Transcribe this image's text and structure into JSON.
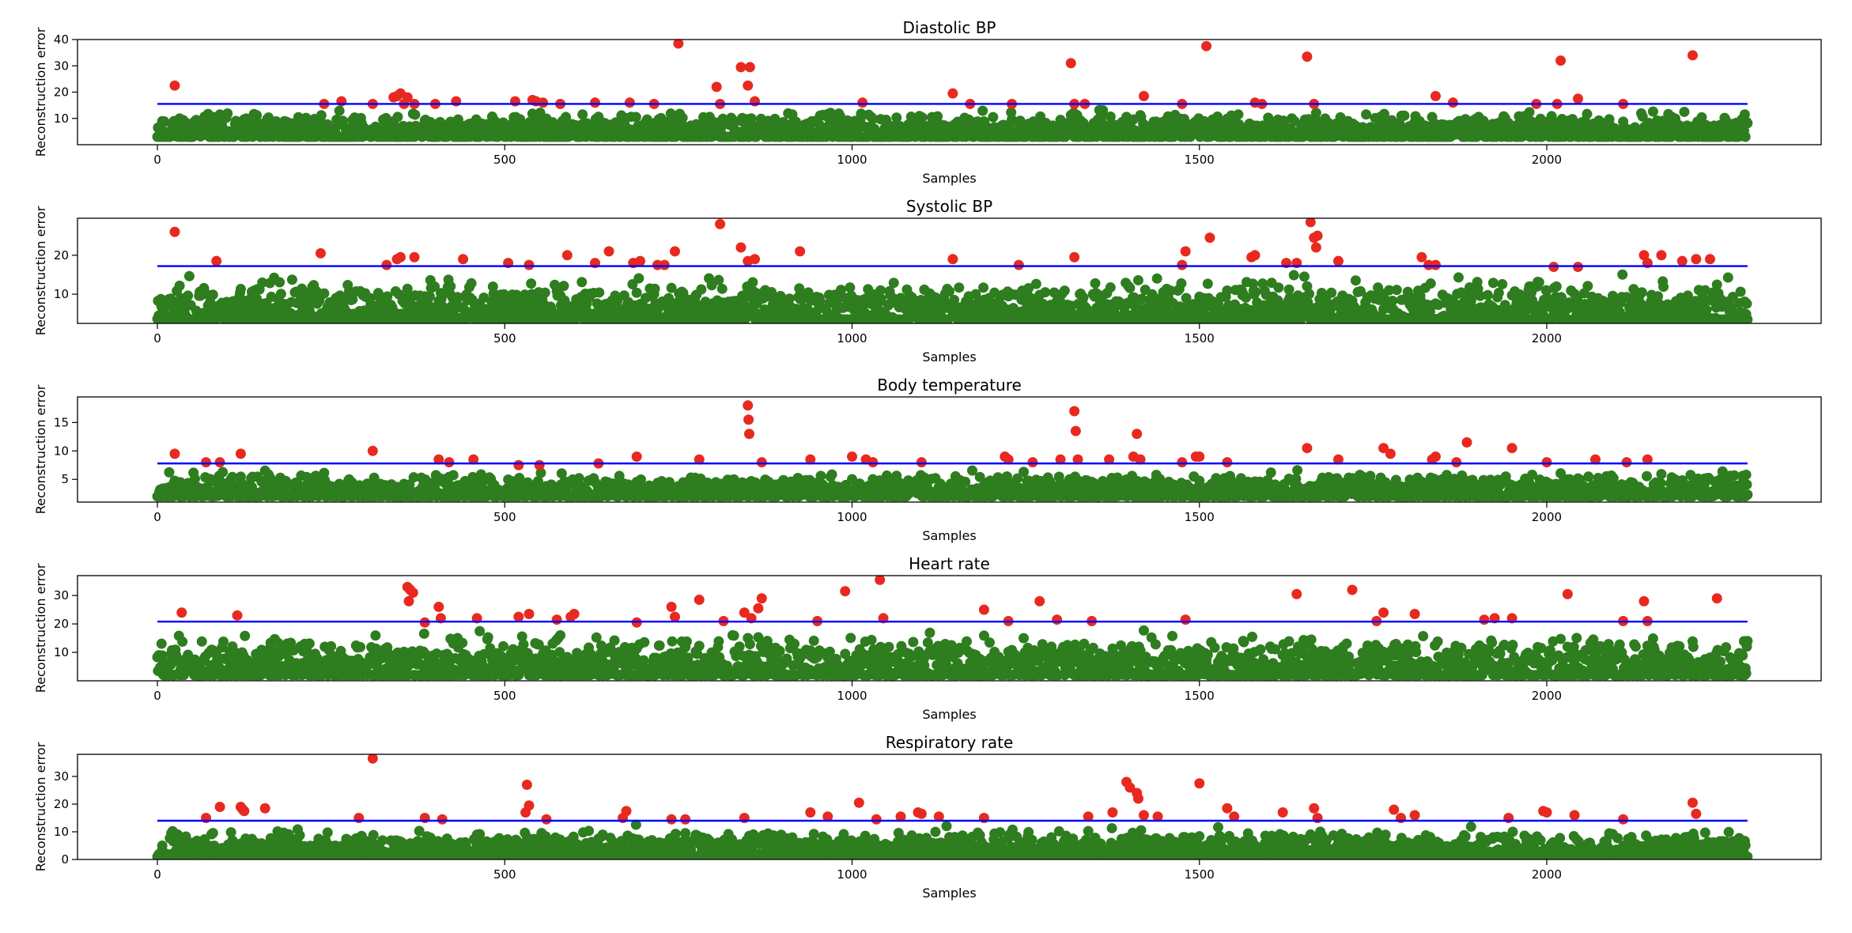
{
  "figure": {
    "background": "#ffffff",
    "normal_color": "#2e7d1f",
    "anomaly_color": "#e8291f",
    "threshold_color": "#0000ff"
  },
  "chart_data": [
    {
      "type": "scatter",
      "title": "Diastolic BP",
      "xlabel": "Samples",
      "ylabel": "Reconstruction error",
      "xlim": [
        -115,
        2395
      ],
      "ylim": [
        0,
        40
      ],
      "xticks": [
        0,
        500,
        1000,
        1500,
        2000
      ],
      "yticks": [
        10,
        20,
        30,
        40
      ],
      "threshold": 15.5,
      "normal_count": 2290,
      "normal_range": [
        3,
        15
      ],
      "normal_seed": 11,
      "grid": false,
      "series": [
        {
          "role": "anomaly",
          "x": [
            25,
            240,
            265,
            310,
            340,
            345,
            350,
            355,
            360,
            370,
            400,
            430,
            515,
            540,
            545,
            555,
            580,
            630,
            680,
            715,
            750,
            805,
            810,
            840,
            850,
            853,
            860,
            1015,
            1145,
            1170,
            1230,
            1315,
            1320,
            1335,
            1420,
            1475,
            1510,
            1580,
            1590,
            1655,
            1665,
            1840,
            1865,
            1985,
            2015,
            2020,
            2045,
            2110,
            2210
          ],
          "y": [
            22.5,
            15.5,
            16.5,
            15.5,
            18.0,
            18.5,
            19.5,
            15.5,
            18.0,
            15.5,
            15.5,
            16.5,
            16.5,
            17.0,
            16.5,
            16.0,
            15.5,
            16.0,
            16.0,
            15.5,
            38.5,
            22.0,
            15.5,
            29.5,
            22.5,
            29.5,
            16.5,
            16.0,
            19.5,
            15.5,
            15.5,
            31.0,
            15.5,
            15.5,
            18.5,
            15.5,
            37.5,
            16.0,
            15.5,
            33.5,
            15.5,
            18.5,
            16.0,
            15.5,
            15.5,
            32.0,
            17.5,
            15.5,
            34.0
          ]
        }
      ]
    },
    {
      "type": "scatter",
      "title": "Systolic BP",
      "xlabel": "Samples",
      "ylabel": "Reconstruction error",
      "xlim": [
        -115,
        2395
      ],
      "ylim": [
        2.5,
        29.5
      ],
      "xticks": [
        0,
        500,
        1000,
        1500,
        2000
      ],
      "yticks": [
        10,
        20
      ],
      "threshold": 17.2,
      "normal_count": 2290,
      "normal_range": [
        3.5,
        17
      ],
      "normal_seed": 23,
      "grid": false,
      "series": [
        {
          "role": "anomaly",
          "x": [
            25,
            85,
            235,
            330,
            345,
            350,
            370,
            440,
            505,
            535,
            590,
            630,
            650,
            685,
            695,
            720,
            730,
            745,
            810,
            840,
            850,
            860,
            925,
            1145,
            1240,
            1320,
            1475,
            1480,
            1515,
            1575,
            1580,
            1625,
            1640,
            1660,
            1665,
            1668,
            1670,
            1700,
            1820,
            1830,
            1840,
            2010,
            2045,
            2140,
            2145,
            2165,
            2195,
            2215,
            2235
          ],
          "y": [
            26.0,
            18.5,
            20.5,
            17.5,
            19.0,
            19.5,
            19.5,
            19.0,
            18.0,
            17.5,
            20.0,
            18.0,
            21.0,
            18.0,
            18.5,
            17.5,
            17.5,
            21.0,
            28.0,
            22.0,
            18.5,
            19.0,
            21.0,
            19.0,
            17.5,
            19.5,
            17.5,
            21.0,
            24.5,
            19.5,
            20.0,
            18.0,
            18.0,
            28.5,
            24.5,
            22.0,
            25.0,
            18.5,
            19.5,
            17.5,
            17.5,
            17.0,
            17.0,
            20.0,
            18.0,
            20.0,
            18.5,
            19.0,
            19.0
          ]
        }
      ]
    },
    {
      "type": "scatter",
      "title": "Body temperature",
      "xlabel": "Samples",
      "ylabel": "Reconstruction error",
      "xlim": [
        -115,
        2395
      ],
      "ylim": [
        1,
        19.5
      ],
      "xticks": [
        0,
        500,
        1000,
        1500,
        2000
      ],
      "yticks": [
        5,
        10,
        15
      ],
      "threshold": 7.8,
      "normal_count": 2290,
      "normal_range": [
        2,
        7.5
      ],
      "normal_seed": 37,
      "grid": false,
      "series": [
        {
          "role": "anomaly",
          "x": [
            25,
            70,
            90,
            120,
            310,
            405,
            420,
            455,
            520,
            550,
            635,
            690,
            780,
            850,
            851,
            852,
            870,
            940,
            1000,
            1020,
            1030,
            1100,
            1220,
            1225,
            1260,
            1300,
            1320,
            1322,
            1325,
            1370,
            1405,
            1410,
            1415,
            1475,
            1495,
            1500,
            1540,
            1655,
            1700,
            1765,
            1775,
            1835,
            1840,
            1870,
            1885,
            1950,
            2000,
            2070,
            2115,
            2145
          ],
          "y": [
            9.5,
            8.0,
            8.0,
            9.5,
            10.0,
            8.5,
            8.0,
            8.5,
            7.5,
            7.5,
            7.8,
            9.0,
            8.5,
            18.0,
            15.5,
            13.0,
            8.0,
            8.5,
            9.0,
            8.5,
            8.0,
            8.0,
            9.0,
            8.5,
            8.0,
            8.5,
            17.0,
            13.5,
            8.5,
            8.5,
            9.0,
            13.0,
            8.5,
            8.0,
            9.0,
            9.0,
            8.0,
            10.5,
            8.5,
            10.5,
            9.5,
            8.5,
            9.0,
            8.0,
            11.5,
            10.5,
            8.0,
            8.5,
            8.0,
            8.5
          ]
        }
      ]
    },
    {
      "type": "scatter",
      "title": "Heart rate",
      "xlabel": "Samples",
      "ylabel": "Reconstruction error",
      "xlim": [
        -115,
        2395
      ],
      "ylim": [
        0,
        37
      ],
      "xticks": [
        0,
        500,
        1000,
        1500,
        2000
      ],
      "yticks": [
        10,
        20,
        30
      ],
      "threshold": 20.8,
      "normal_count": 2290,
      "normal_range": [
        2,
        20
      ],
      "normal_seed": 51,
      "grid": false,
      "series": [
        {
          "role": "anomaly",
          "x": [
            35,
            115,
            360,
            362,
            364,
            368,
            385,
            405,
            408,
            460,
            520,
            535,
            575,
            595,
            600,
            690,
            740,
            745,
            780,
            815,
            845,
            855,
            865,
            870,
            950,
            990,
            1040,
            1045,
            1190,
            1225,
            1270,
            1295,
            1345,
            1480,
            1640,
            1720,
            1755,
            1765,
            1810,
            1910,
            1925,
            1950,
            2030,
            2110,
            2140,
            2145,
            2245
          ],
          "y": [
            24.0,
            23.0,
            33.0,
            28.0,
            32.0,
            31.0,
            20.5,
            26.0,
            22.0,
            22.0,
            22.5,
            23.5,
            21.5,
            22.5,
            23.5,
            20.5,
            26.0,
            22.5,
            28.5,
            21.0,
            24.0,
            22.0,
            25.5,
            29.0,
            21.0,
            31.5,
            35.5,
            22.0,
            25.0,
            21.0,
            28.0,
            21.5,
            21.0,
            21.5,
            30.5,
            32.0,
            21.0,
            24.0,
            23.5,
            21.5,
            22.0,
            22.0,
            30.5,
            21.0,
            28.0,
            21.0,
            29.0
          ]
        }
      ]
    },
    {
      "type": "scatter",
      "title": "Respiratory rate",
      "xlabel": "Samples",
      "ylabel": "Reconstruction error",
      "xlim": [
        -115,
        2395
      ],
      "ylim": [
        0,
        38
      ],
      "xticks": [
        0,
        500,
        1000,
        1500,
        2000
      ],
      "yticks": [
        0,
        10,
        20,
        30
      ],
      "threshold": 14.0,
      "normal_count": 2290,
      "normal_range": [
        1,
        14
      ],
      "normal_seed": 67,
      "grid": false,
      "series": [
        {
          "role": "anomaly",
          "x": [
            70,
            90,
            120,
            123,
            125,
            155,
            290,
            310,
            385,
            410,
            530,
            532,
            535,
            560,
            670,
            675,
            740,
            760,
            845,
            940,
            965,
            1010,
            1035,
            1070,
            1095,
            1100,
            1125,
            1190,
            1340,
            1375,
            1395,
            1400,
            1410,
            1412,
            1420,
            1440,
            1500,
            1540,
            1550,
            1620,
            1665,
            1670,
            1780,
            1790,
            1810,
            1945,
            1995,
            2000,
            2040,
            2110,
            2210,
            2215
          ],
          "y": [
            15.0,
            19.0,
            19.0,
            18.0,
            17.5,
            18.5,
            15.0,
            36.5,
            15.0,
            14.5,
            17.0,
            27.0,
            19.5,
            14.5,
            15.0,
            17.5,
            14.5,
            14.5,
            15.0,
            17.0,
            15.5,
            20.5,
            14.5,
            15.5,
            17.0,
            16.5,
            15.5,
            15.0,
            15.5,
            17.0,
            28.0,
            26.0,
            24.0,
            22.0,
            16.0,
            15.5,
            27.5,
            18.5,
            15.5,
            17.0,
            18.5,
            15.0,
            18.0,
            15.0,
            16.0,
            15.0,
            17.5,
            17.0,
            16.0,
            14.5,
            20.5,
            16.5
          ]
        }
      ]
    }
  ]
}
